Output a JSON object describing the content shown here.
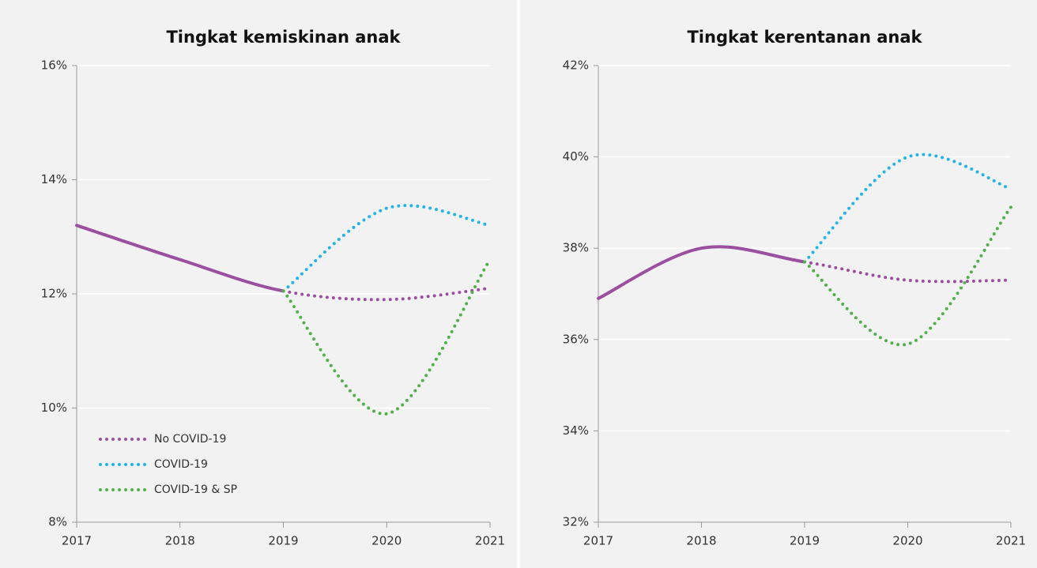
{
  "chart_data": [
    {
      "type": "line",
      "title": "Tingkat kemiskinan anak",
      "x": [
        2017,
        2018,
        2019,
        2020,
        2021
      ],
      "xlim": [
        2017,
        2021
      ],
      "xticks": [
        2017,
        2018,
        2019,
        2020,
        2021
      ],
      "ylim": [
        8,
        16
      ],
      "yticks": [
        {
          "value": 8,
          "label": "8%"
        },
        {
          "value": 10,
          "label": "10%"
        },
        {
          "value": 12,
          "label": "12%"
        },
        {
          "value": 14,
          "label": "14%"
        },
        {
          "value": 16,
          "label": "16%"
        }
      ],
      "grid": true,
      "legend": "lower left",
      "projection_start": 2019,
      "series": [
        {
          "name": "No COVID-19",
          "color": "#9b4f9f",
          "values": [
            13.2,
            12.6,
            12.05,
            11.9,
            12.1
          ]
        },
        {
          "name": "COVID-19",
          "color": "#22b5e6",
          "values": [
            null,
            null,
            12.05,
            13.5,
            13.2
          ]
        },
        {
          "name": "COVID-19 & SP",
          "color": "#52b04a",
          "values": [
            null,
            null,
            12.05,
            9.9,
            12.6
          ]
        }
      ]
    },
    {
      "type": "line",
      "title": "Tingkat kerentanan anak",
      "x": [
        2017,
        2018,
        2019,
        2020,
        2021
      ],
      "xlim": [
        2017,
        2021
      ],
      "xticks": [
        2017,
        2018,
        2019,
        2020,
        2021
      ],
      "ylim": [
        32,
        42
      ],
      "yticks": [
        {
          "value": 32,
          "label": "32%"
        },
        {
          "value": 34,
          "label": "34%"
        },
        {
          "value": 36,
          "label": "36%"
        },
        {
          "value": 38,
          "label": "38%"
        },
        {
          "value": 40,
          "label": "40%"
        },
        {
          "value": 42,
          "label": "42%"
        }
      ],
      "grid": true,
      "projection_start": 2019,
      "series": [
        {
          "color": "#9b4f9f",
          "values": [
            36.9,
            38.0,
            37.7,
            37.3,
            37.3
          ]
        },
        {
          "color": "#22b5e6",
          "values": [
            null,
            null,
            37.7,
            40.0,
            39.3
          ]
        },
        {
          "color": "#52b04a",
          "values": [
            null,
            null,
            37.7,
            35.9,
            38.9
          ]
        }
      ]
    }
  ]
}
